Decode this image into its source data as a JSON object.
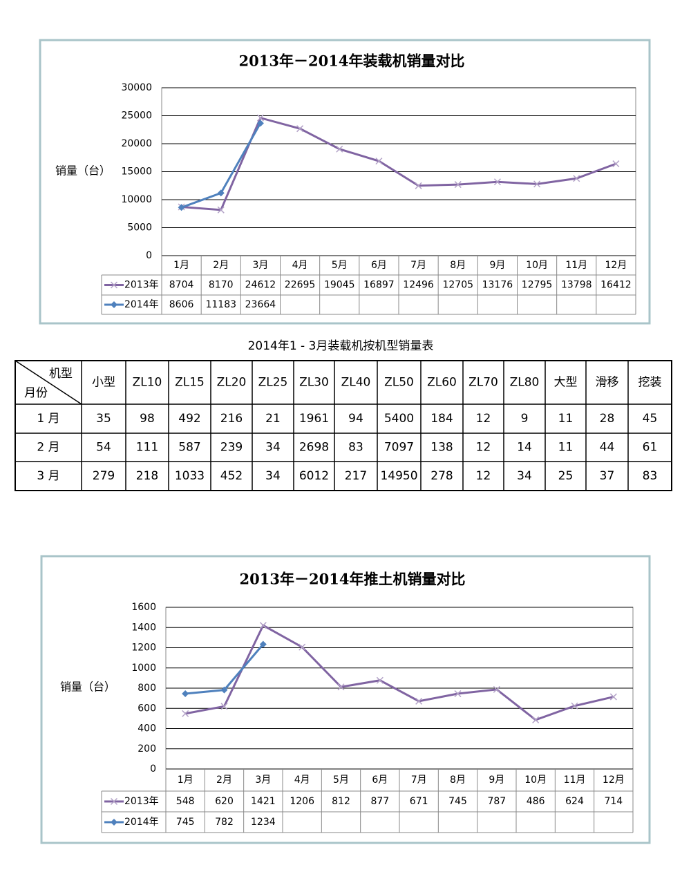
{
  "chart_data": [
    {
      "type": "line",
      "title": "2013年－2014年装载机销量对比",
      "y_label": "销量（台）",
      "categories": [
        "1月",
        "2月",
        "3月",
        "4月",
        "5月",
        "6月",
        "7月",
        "8月",
        "9月",
        "10月",
        "11月",
        "12月"
      ],
      "series": [
        {
          "name": "2013年",
          "color": "#8064a2",
          "marker": "x",
          "values": [
            8704,
            8170,
            24612,
            22695,
            19045,
            16897,
            12496,
            12705,
            13176,
            12795,
            13798,
            16412
          ]
        },
        {
          "name": "2014年",
          "color": "#4f81bd",
          "marker": "diamond",
          "values": [
            8606,
            11183,
            23664,
            null,
            null,
            null,
            null,
            null,
            null,
            null,
            null,
            null
          ]
        }
      ],
      "ylim": [
        0,
        30000
      ],
      "yticks": [
        0,
        5000,
        10000,
        15000,
        20000,
        25000,
        30000
      ],
      "grid": true
    },
    {
      "type": "line",
      "title": "2013年－2014年推土机销量对比",
      "y_label": "销量（台）",
      "categories": [
        "1月",
        "2月",
        "3月",
        "4月",
        "5月",
        "6月",
        "7月",
        "8月",
        "9月",
        "10月",
        "11月",
        "12月"
      ],
      "series": [
        {
          "name": "2013年",
          "color": "#8064a2",
          "marker": "x",
          "values": [
            548,
            620,
            1421,
            1206,
            812,
            877,
            671,
            745,
            787,
            486,
            624,
            714
          ]
        },
        {
          "name": "2014年",
          "color": "#4f81bd",
          "marker": "diamond",
          "values": [
            745,
            782,
            1234,
            null,
            null,
            null,
            null,
            null,
            null,
            null,
            null,
            null
          ]
        }
      ],
      "ylim": [
        0,
        1600
      ],
      "yticks": [
        0,
        200,
        400,
        600,
        800,
        1000,
        1200,
        1400,
        1600
      ],
      "grid": true
    }
  ],
  "table": {
    "title": "2014年1 - 3月装载机按机型销量表",
    "corner_top": "机型",
    "corner_bottom": "月份",
    "columns": [
      "小型",
      "ZL10",
      "ZL15",
      "ZL20",
      "ZL25",
      "ZL30",
      "ZL40",
      "ZL50",
      "ZL60",
      "ZL70",
      "ZL80",
      "大型",
      "滑移",
      "挖装"
    ],
    "rows": [
      [
        "1 月",
        35,
        98,
        492,
        216,
        21,
        1961,
        94,
        5400,
        184,
        12,
        9,
        11,
        28,
        45
      ],
      [
        "2 月",
        54,
        111,
        587,
        239,
        34,
        2698,
        83,
        7097,
        138,
        12,
        14,
        11,
        44,
        61
      ],
      [
        "3 月",
        279,
        218,
        1033,
        452,
        34,
        6012,
        217,
        14950,
        278,
        12,
        34,
        25,
        37,
        83
      ]
    ]
  }
}
